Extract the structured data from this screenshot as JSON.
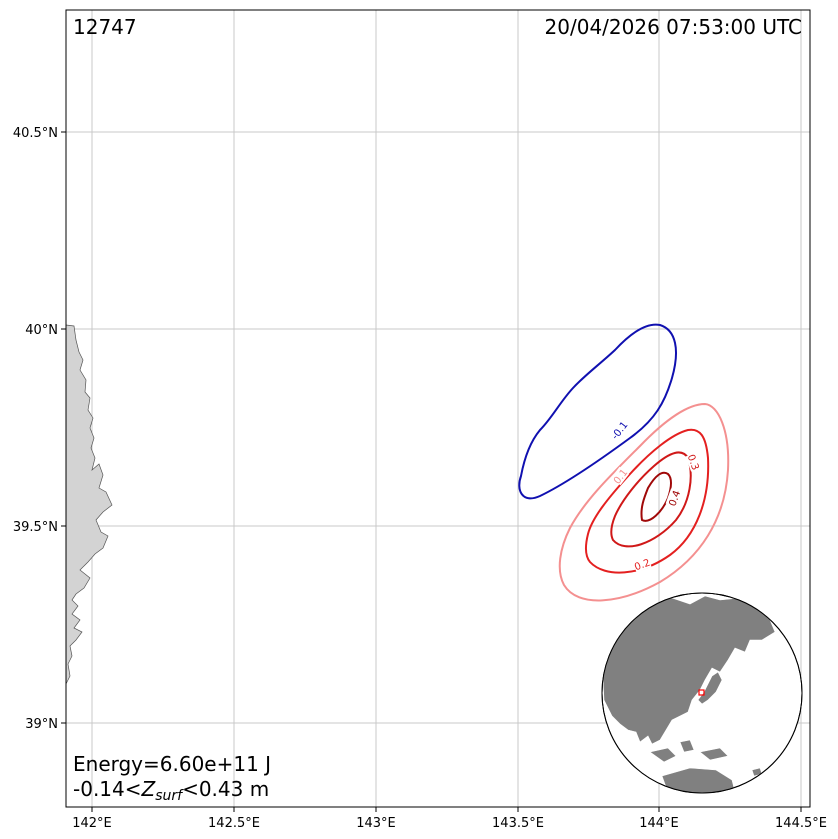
{
  "header": {
    "frame_id": "12747",
    "timestamp": "20/04/2026 07:53:00 UTC"
  },
  "footer": {
    "energy": "Energy=6.60e+11 J",
    "zsurf_prefix": "-0.14<",
    "zsurf_symbol": "Z",
    "zsurf_sub": "surf",
    "zsurf_suffix": "<0.43 m"
  },
  "axes": {
    "x_ticks": [
      "142°E",
      "142.5°E",
      "143°E",
      "143.5°E",
      "144°E",
      "144.5°E"
    ],
    "y_ticks": [
      "40.5°N",
      "40°N",
      "39.5°N",
      "39°N"
    ]
  },
  "contours": {
    "labels": [
      "-0.1",
      "0.1",
      "0.2",
      "0.3",
      "0.4"
    ],
    "colors": {
      "neg_0_1": "#1010b0",
      "pos_0_1": "#f49090",
      "pos_0_2": "#e42020",
      "pos_0_3": "#d01818",
      "pos_0_4": "#a00808"
    }
  },
  "inset": {
    "description_icon": "globe-locator-icon",
    "land_color": "#808080",
    "marker_color": "#ff0000"
  },
  "colors": {
    "land": "#d3d3d3",
    "grid": "#c0c0c0"
  }
}
